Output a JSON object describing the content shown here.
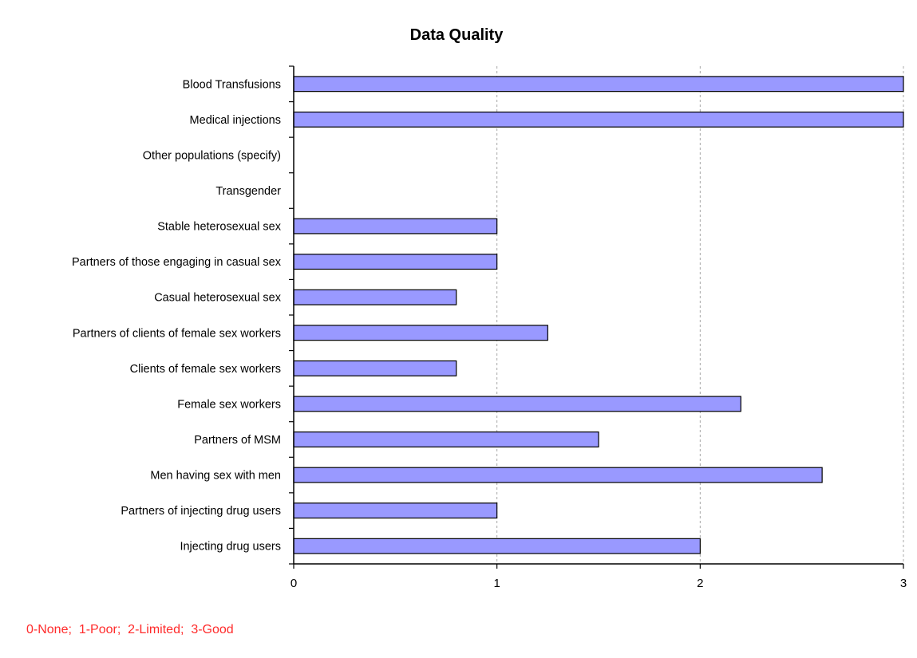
{
  "chart_data": {
    "type": "bar",
    "orientation": "horizontal",
    "title": "Data Quality",
    "categories": [
      "Blood Transfusions",
      "Medical injections",
      "Other populations    (specify)",
      "Transgender",
      "Stable heterosexual sex",
      "Partners of those engaging in casual sex",
      "Casual heterosexual sex",
      "Partners of clients of female sex workers",
      "Clients of female sex workers",
      "Female sex workers",
      "Partners of MSM",
      "Men having sex with men",
      "Partners of injecting drug users",
      "Injecting drug users"
    ],
    "values": [
      3,
      3,
      0,
      0,
      1,
      1,
      0.8,
      1.25,
      0.8,
      2.2,
      1.5,
      2.6,
      1,
      2
    ],
    "xlim": [
      0,
      3
    ],
    "xticks": [
      "0",
      "1",
      "2",
      "3"
    ],
    "grid": "vertical dashed",
    "legend": "none",
    "bar_color": "#9999ff",
    "bar_edge_color": "#000000",
    "footnote": "0-None;  1-Poor;  2-Limited;  3-Good",
    "footnote_color": "#ff2b2b"
  }
}
